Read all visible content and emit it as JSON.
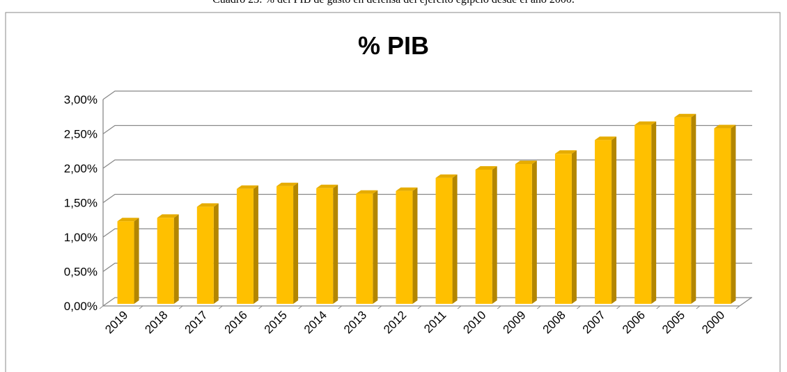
{
  "caption": "Cuadro 23: % del PIB de gasto en defensa del ejército egipcio desde el año 2000.",
  "chart_data": {
    "type": "bar3d",
    "title": "% PIB",
    "categories": [
      "2019",
      "2018",
      "2017",
      "2016",
      "2015",
      "2014",
      "2013",
      "2012",
      "2011",
      "2010",
      "2009",
      "2008",
      "2007",
      "2006",
      "2005",
      "2000"
    ],
    "values": [
      1.2,
      1.25,
      1.41,
      1.67,
      1.71,
      1.68,
      1.6,
      1.64,
      1.83,
      1.95,
      2.03,
      2.18,
      2.38,
      2.6,
      2.71,
      2.55
    ],
    "color": "#ffc000",
    "ylim": [
      0,
      3
    ],
    "yticks": [
      {
        "value": 0,
        "label": "0,00%"
      },
      {
        "value": 0.5,
        "label": "0,50%"
      },
      {
        "value": 1,
        "label": "1,00%"
      },
      {
        "value": 1.5,
        "label": "1,50%"
      },
      {
        "value": 2,
        "label": "2,00%"
      },
      {
        "value": 2.5,
        "label": "2,50%"
      },
      {
        "value": 3,
        "label": "3,00%"
      }
    ],
    "grid": true
  }
}
